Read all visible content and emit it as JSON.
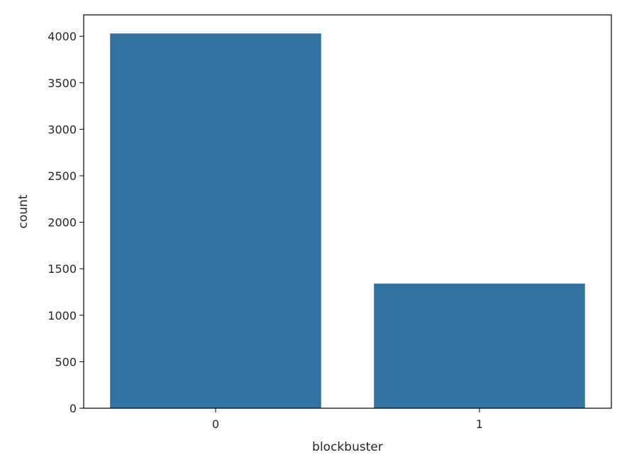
{
  "chart_data": {
    "type": "bar",
    "categories": [
      "0",
      "1"
    ],
    "values": [
      4030,
      1340
    ],
    "xlabel": "blockbuster",
    "ylabel": "count",
    "ylim": [
      0,
      4230
    ],
    "yticks": [
      0,
      500,
      1000,
      1500,
      2000,
      2500,
      3000,
      3500,
      4000
    ],
    "grid": false,
    "bar_color": "#3274a1"
  }
}
